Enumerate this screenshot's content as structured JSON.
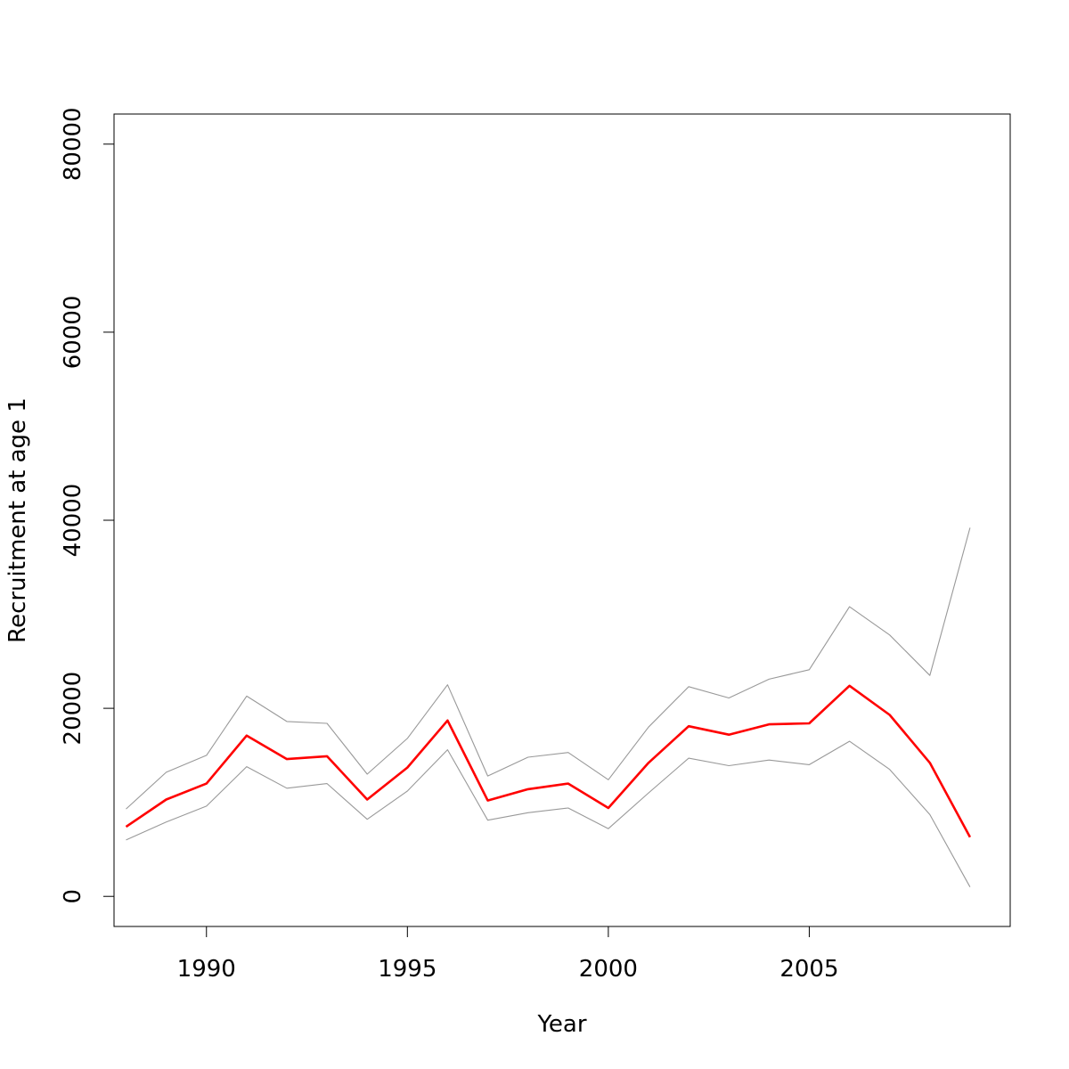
{
  "chart_data": {
    "type": "line",
    "title": "",
    "xlabel": "Year",
    "ylabel": "Recruitment at age 1",
    "xlim": [
      1987.7,
      2010
    ],
    "ylim": [
      -3200,
      83200
    ],
    "x_ticks": [
      1990,
      1995,
      2000,
      2005
    ],
    "y_ticks": [
      0,
      20000,
      40000,
      60000,
      80000
    ],
    "grid": false,
    "legend": "none",
    "x": [
      1988,
      1989,
      1990,
      1991,
      1992,
      1993,
      1994,
      1995,
      1996,
      1997,
      1998,
      1999,
      2000,
      2001,
      2002,
      2003,
      2004,
      2005,
      2006,
      2007,
      2008,
      2009
    ],
    "series": [
      {
        "color": "#ff0000",
        "role": "estimate",
        "values": [
          7400,
          10300,
          12000,
          17100,
          14600,
          14900,
          10300,
          13700,
          18700,
          10200,
          11400,
          12000,
          9400,
          14200,
          18100,
          17200,
          18300,
          18400,
          22400,
          19300,
          14200,
          6300
        ]
      },
      {
        "color": "#999999",
        "role": "upper",
        "values": [
          9300,
          13200,
          15000,
          21300,
          18600,
          18400,
          13000,
          16800,
          22500,
          12800,
          14800,
          15300,
          12400,
          18000,
          22300,
          21100,
          23100,
          24100,
          30800,
          27800,
          23500,
          39200
        ]
      },
      {
        "color": "#999999",
        "role": "lower",
        "values": [
          6000,
          7900,
          9600,
          13800,
          11500,
          12000,
          8200,
          11200,
          15600,
          8100,
          8900,
          9400,
          7200,
          11000,
          14700,
          13900,
          14500,
          14000,
          16500,
          13500,
          8700,
          1000
        ]
      }
    ]
  }
}
